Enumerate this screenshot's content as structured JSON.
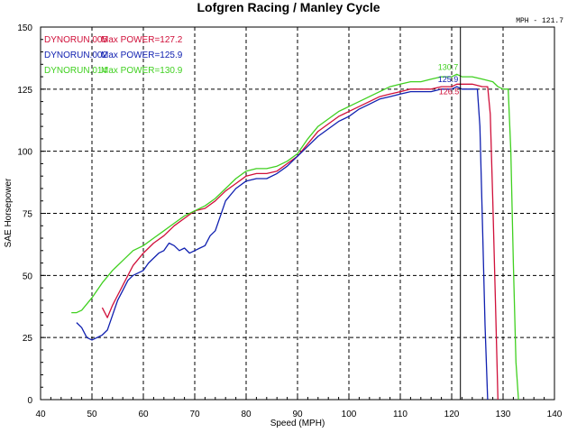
{
  "chart_data": {
    "type": "line",
    "title": "Lofgren Racing / Manley Cycle",
    "xlabel": "Speed (MPH)",
    "ylabel": "SAE Horsepower",
    "xlim": [
      40,
      140
    ],
    "ylim": [
      0,
      150
    ],
    "x_ticks": [
      "40",
      "50",
      "60",
      "70",
      "80",
      "90",
      "100",
      "110",
      "120",
      "130",
      "140"
    ],
    "y_ticks": [
      "0",
      "25",
      "50",
      "75",
      "100",
      "125",
      "150"
    ],
    "grid": "dashed",
    "legend_placement": "top-left",
    "cursor": {
      "x": 121.7,
      "label": "MPH - 121.7"
    },
    "series": [
      {
        "name": "DYNORUN.005",
        "max_label": "Max POWER=127.2",
        "peak_label": "126.5",
        "peak_point": [
          121,
          127
        ],
        "color": "#d0103a",
        "points": [
          [
            52,
            37
          ],
          [
            53,
            33
          ],
          [
            54,
            38
          ],
          [
            56,
            46
          ],
          [
            58,
            54
          ],
          [
            60,
            59
          ],
          [
            62,
            63
          ],
          [
            64,
            66
          ],
          [
            66,
            70
          ],
          [
            68,
            73
          ],
          [
            70,
            76
          ],
          [
            72,
            77
          ],
          [
            74,
            80
          ],
          [
            76,
            84
          ],
          [
            78,
            87
          ],
          [
            80,
            90
          ],
          [
            82,
            91
          ],
          [
            84,
            91
          ],
          [
            86,
            92
          ],
          [
            88,
            95
          ],
          [
            90,
            98
          ],
          [
            92,
            103
          ],
          [
            94,
            108
          ],
          [
            96,
            111
          ],
          [
            98,
            114
          ],
          [
            100,
            116
          ],
          [
            102,
            118
          ],
          [
            104,
            120
          ],
          [
            106,
            122
          ],
          [
            108,
            123
          ],
          [
            110,
            124
          ],
          [
            112,
            125
          ],
          [
            114,
            125
          ],
          [
            116,
            125
          ],
          [
            118,
            126
          ],
          [
            120,
            126
          ],
          [
            121,
            127
          ],
          [
            122,
            127
          ],
          [
            124,
            127
          ],
          [
            126,
            126
          ],
          [
            127,
            126
          ],
          [
            127.5,
            115
          ],
          [
            128,
            80
          ],
          [
            128.5,
            40
          ],
          [
            129,
            0
          ]
        ]
      },
      {
        "name": "DYNORUN.002",
        "max_label": "Max POWER=125.9",
        "peak_label": "125.9",
        "peak_point": [
          121,
          126
        ],
        "color": "#1020b0",
        "points": [
          [
            47,
            31
          ],
          [
            48,
            29
          ],
          [
            49,
            25
          ],
          [
            50,
            24
          ],
          [
            51,
            25
          ],
          [
            52,
            26
          ],
          [
            53,
            28
          ],
          [
            54,
            34
          ],
          [
            55,
            40
          ],
          [
            56,
            44
          ],
          [
            57,
            48
          ],
          [
            58,
            50
          ],
          [
            60,
            52
          ],
          [
            61,
            55
          ],
          [
            62,
            57
          ],
          [
            63,
            59
          ],
          [
            64,
            60
          ],
          [
            65,
            63
          ],
          [
            66,
            62
          ],
          [
            67,
            60
          ],
          [
            68,
            61
          ],
          [
            69,
            59
          ],
          [
            70,
            60
          ],
          [
            71,
            61
          ],
          [
            72,
            62
          ],
          [
            73,
            66
          ],
          [
            74,
            68
          ],
          [
            75,
            74
          ],
          [
            76,
            80
          ],
          [
            78,
            85
          ],
          [
            80,
            88
          ],
          [
            82,
            89
          ],
          [
            84,
            89
          ],
          [
            86,
            91
          ],
          [
            88,
            94
          ],
          [
            90,
            98
          ],
          [
            92,
            102
          ],
          [
            94,
            106
          ],
          [
            96,
            109
          ],
          [
            98,
            112
          ],
          [
            100,
            114
          ],
          [
            102,
            117
          ],
          [
            104,
            119
          ],
          [
            106,
            121
          ],
          [
            108,
            122
          ],
          [
            110,
            123
          ],
          [
            112,
            124
          ],
          [
            114,
            124
          ],
          [
            116,
            124
          ],
          [
            118,
            125
          ],
          [
            120,
            125
          ],
          [
            121,
            126
          ],
          [
            122,
            125
          ],
          [
            124,
            125
          ],
          [
            125,
            125
          ],
          [
            125.5,
            110
          ],
          [
            126,
            70
          ],
          [
            126.5,
            30
          ],
          [
            127,
            0
          ]
        ]
      },
      {
        "name": "DYNORUN.014",
        "max_label": "Max POWER=130.9",
        "peak_label": "130.7",
        "peak_point": [
          121,
          131
        ],
        "color": "#40d020",
        "points": [
          [
            46,
            35
          ],
          [
            47,
            35
          ],
          [
            48,
            36
          ],
          [
            50,
            41
          ],
          [
            52,
            47
          ],
          [
            54,
            52
          ],
          [
            56,
            56
          ],
          [
            58,
            60
          ],
          [
            60,
            62
          ],
          [
            62,
            65
          ],
          [
            64,
            68
          ],
          [
            66,
            71
          ],
          [
            68,
            74
          ],
          [
            70,
            76
          ],
          [
            72,
            78
          ],
          [
            74,
            81
          ],
          [
            76,
            85
          ],
          [
            78,
            89
          ],
          [
            80,
            92
          ],
          [
            82,
            93
          ],
          [
            84,
            93
          ],
          [
            86,
            94
          ],
          [
            88,
            96
          ],
          [
            90,
            99
          ],
          [
            92,
            105
          ],
          [
            94,
            110
          ],
          [
            96,
            113
          ],
          [
            98,
            116
          ],
          [
            100,
            118
          ],
          [
            102,
            120
          ],
          [
            104,
            122
          ],
          [
            106,
            124
          ],
          [
            108,
            126
          ],
          [
            110,
            127
          ],
          [
            112,
            128
          ],
          [
            114,
            128
          ],
          [
            116,
            129
          ],
          [
            118,
            130
          ],
          [
            120,
            130
          ],
          [
            121,
            131
          ],
          [
            122,
            130
          ],
          [
            124,
            130
          ],
          [
            126,
            129
          ],
          [
            128,
            128
          ],
          [
            129,
            126
          ],
          [
            130,
            125
          ],
          [
            131,
            125
          ],
          [
            131.5,
            100
          ],
          [
            132,
            55
          ],
          [
            132.5,
            15
          ],
          [
            133,
            0
          ]
        ]
      }
    ]
  }
}
